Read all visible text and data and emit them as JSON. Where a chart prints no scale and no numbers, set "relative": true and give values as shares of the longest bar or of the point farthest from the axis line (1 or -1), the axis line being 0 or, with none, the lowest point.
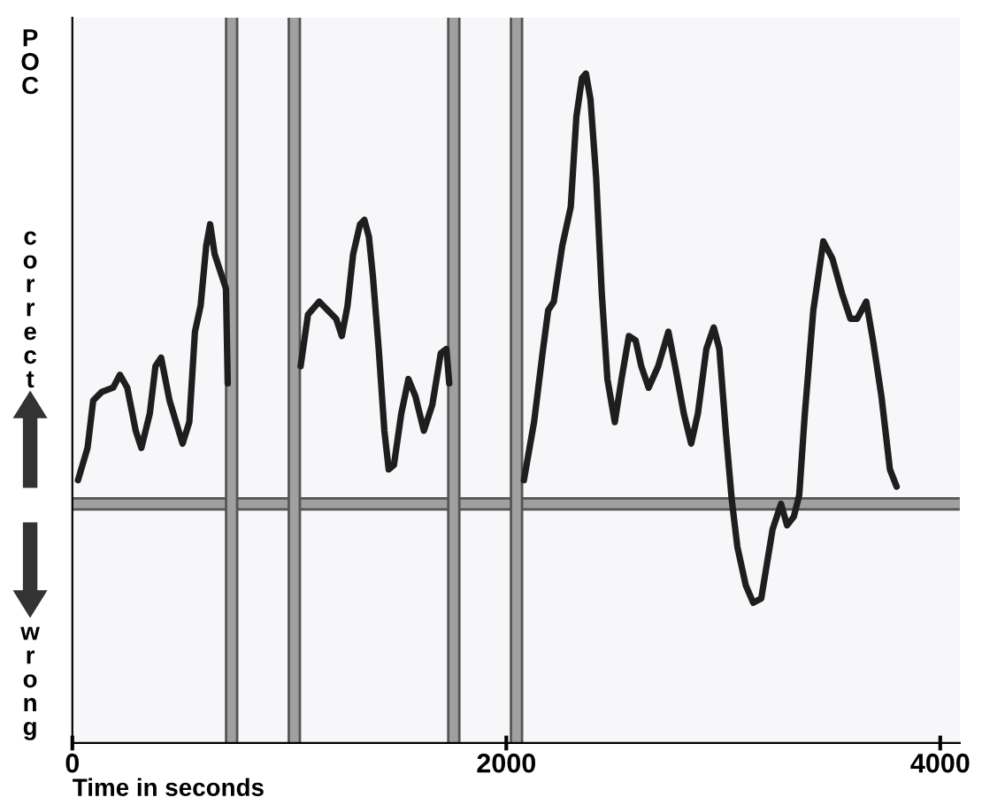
{
  "chart_data": {
    "type": "line",
    "relative": true,
    "ylabel": "POC",
    "xlabel": "Time in seconds",
    "annotations": [
      "correct",
      "wrong"
    ],
    "xlim": [
      0,
      4090
    ],
    "xticks": [
      0,
      2000,
      4000
    ],
    "grid": false,
    "legend": false,
    "line_style": "solid",
    "ref_lines": [
      {
        "axis": "y",
        "value": 0,
        "color": "#a0a0a0"
      },
      {
        "axis": "x",
        "value": 734,
        "color": "#a0a0a0"
      },
      {
        "axis": "x",
        "value": 1023,
        "color": "#a0a0a0"
      },
      {
        "axis": "x",
        "value": 1758,
        "color": "#a0a0a0"
      },
      {
        "axis": "x",
        "value": 2047,
        "color": "#a0a0a0"
      }
    ],
    "series": [
      {
        "color": "#1e1e1e",
        "x": [
          26,
          70,
          96,
          135,
          188,
          219,
          253,
          292,
          318,
          357,
          383,
          409,
          448,
          508,
          539,
          565,
          591,
          617,
          635,
          656,
          682,
          708,
          716
        ],
        "values": [
          0.055,
          0.13,
          0.24,
          0.26,
          0.27,
          0.3,
          0.27,
          0.17,
          0.13,
          0.21,
          0.32,
          0.34,
          0.24,
          0.14,
          0.19,
          0.4,
          0.46,
          0.6,
          0.65,
          0.58,
          0.54,
          0.5,
          0.28
        ]
      },
      {
        "color": "#1e1e1e",
        "x": [
          1052,
          1086,
          1138,
          1177,
          1216,
          1242,
          1268,
          1294,
          1326,
          1346,
          1367,
          1385,
          1412,
          1438,
          1458,
          1482,
          1516,
          1549,
          1581,
          1620,
          1659,
          1698,
          1724,
          1737
        ],
        "values": [
          0.32,
          0.44,
          0.47,
          0.45,
          0.43,
          0.39,
          0.46,
          0.58,
          0.65,
          0.66,
          0.62,
          0.53,
          0.36,
          0.17,
          0.08,
          0.09,
          0.21,
          0.29,
          0.25,
          0.17,
          0.23,
          0.35,
          0.36,
          0.28
        ]
      },
      {
        "color": "#1e1e1e",
        "x": [
          2081,
          2128,
          2167,
          2193,
          2219,
          2258,
          2297,
          2323,
          2349,
          2367,
          2388,
          2414,
          2440,
          2466,
          2500,
          2531,
          2565,
          2596,
          2622,
          2656,
          2700,
          2747,
          2778,
          2818,
          2852,
          2883,
          2922,
          2956,
          2982,
          3013,
          3039,
          3065,
          3104,
          3138,
          3175,
          3201,
          3227,
          3266,
          3294,
          3325,
          3350,
          3376,
          3415,
          3461,
          3503,
          3547,
          3586,
          3617,
          3659,
          3690,
          3729,
          3768,
          3799
        ],
        "values": [
          0.055,
          0.19,
          0.35,
          0.45,
          0.47,
          0.6,
          0.69,
          0.9,
          0.99,
          1.0,
          0.94,
          0.76,
          0.49,
          0.29,
          0.19,
          0.29,
          0.39,
          0.38,
          0.32,
          0.27,
          0.32,
          0.4,
          0.32,
          0.21,
          0.14,
          0.21,
          0.36,
          0.41,
          0.36,
          0.16,
          0.01,
          -0.1,
          -0.19,
          -0.23,
          -0.22,
          -0.14,
          -0.06,
          0.0,
          -0.05,
          -0.03,
          0.02,
          0.21,
          0.45,
          0.61,
          0.57,
          0.49,
          0.43,
          0.43,
          0.47,
          0.38,
          0.25,
          0.08,
          0.04
        ]
      }
    ]
  }
}
